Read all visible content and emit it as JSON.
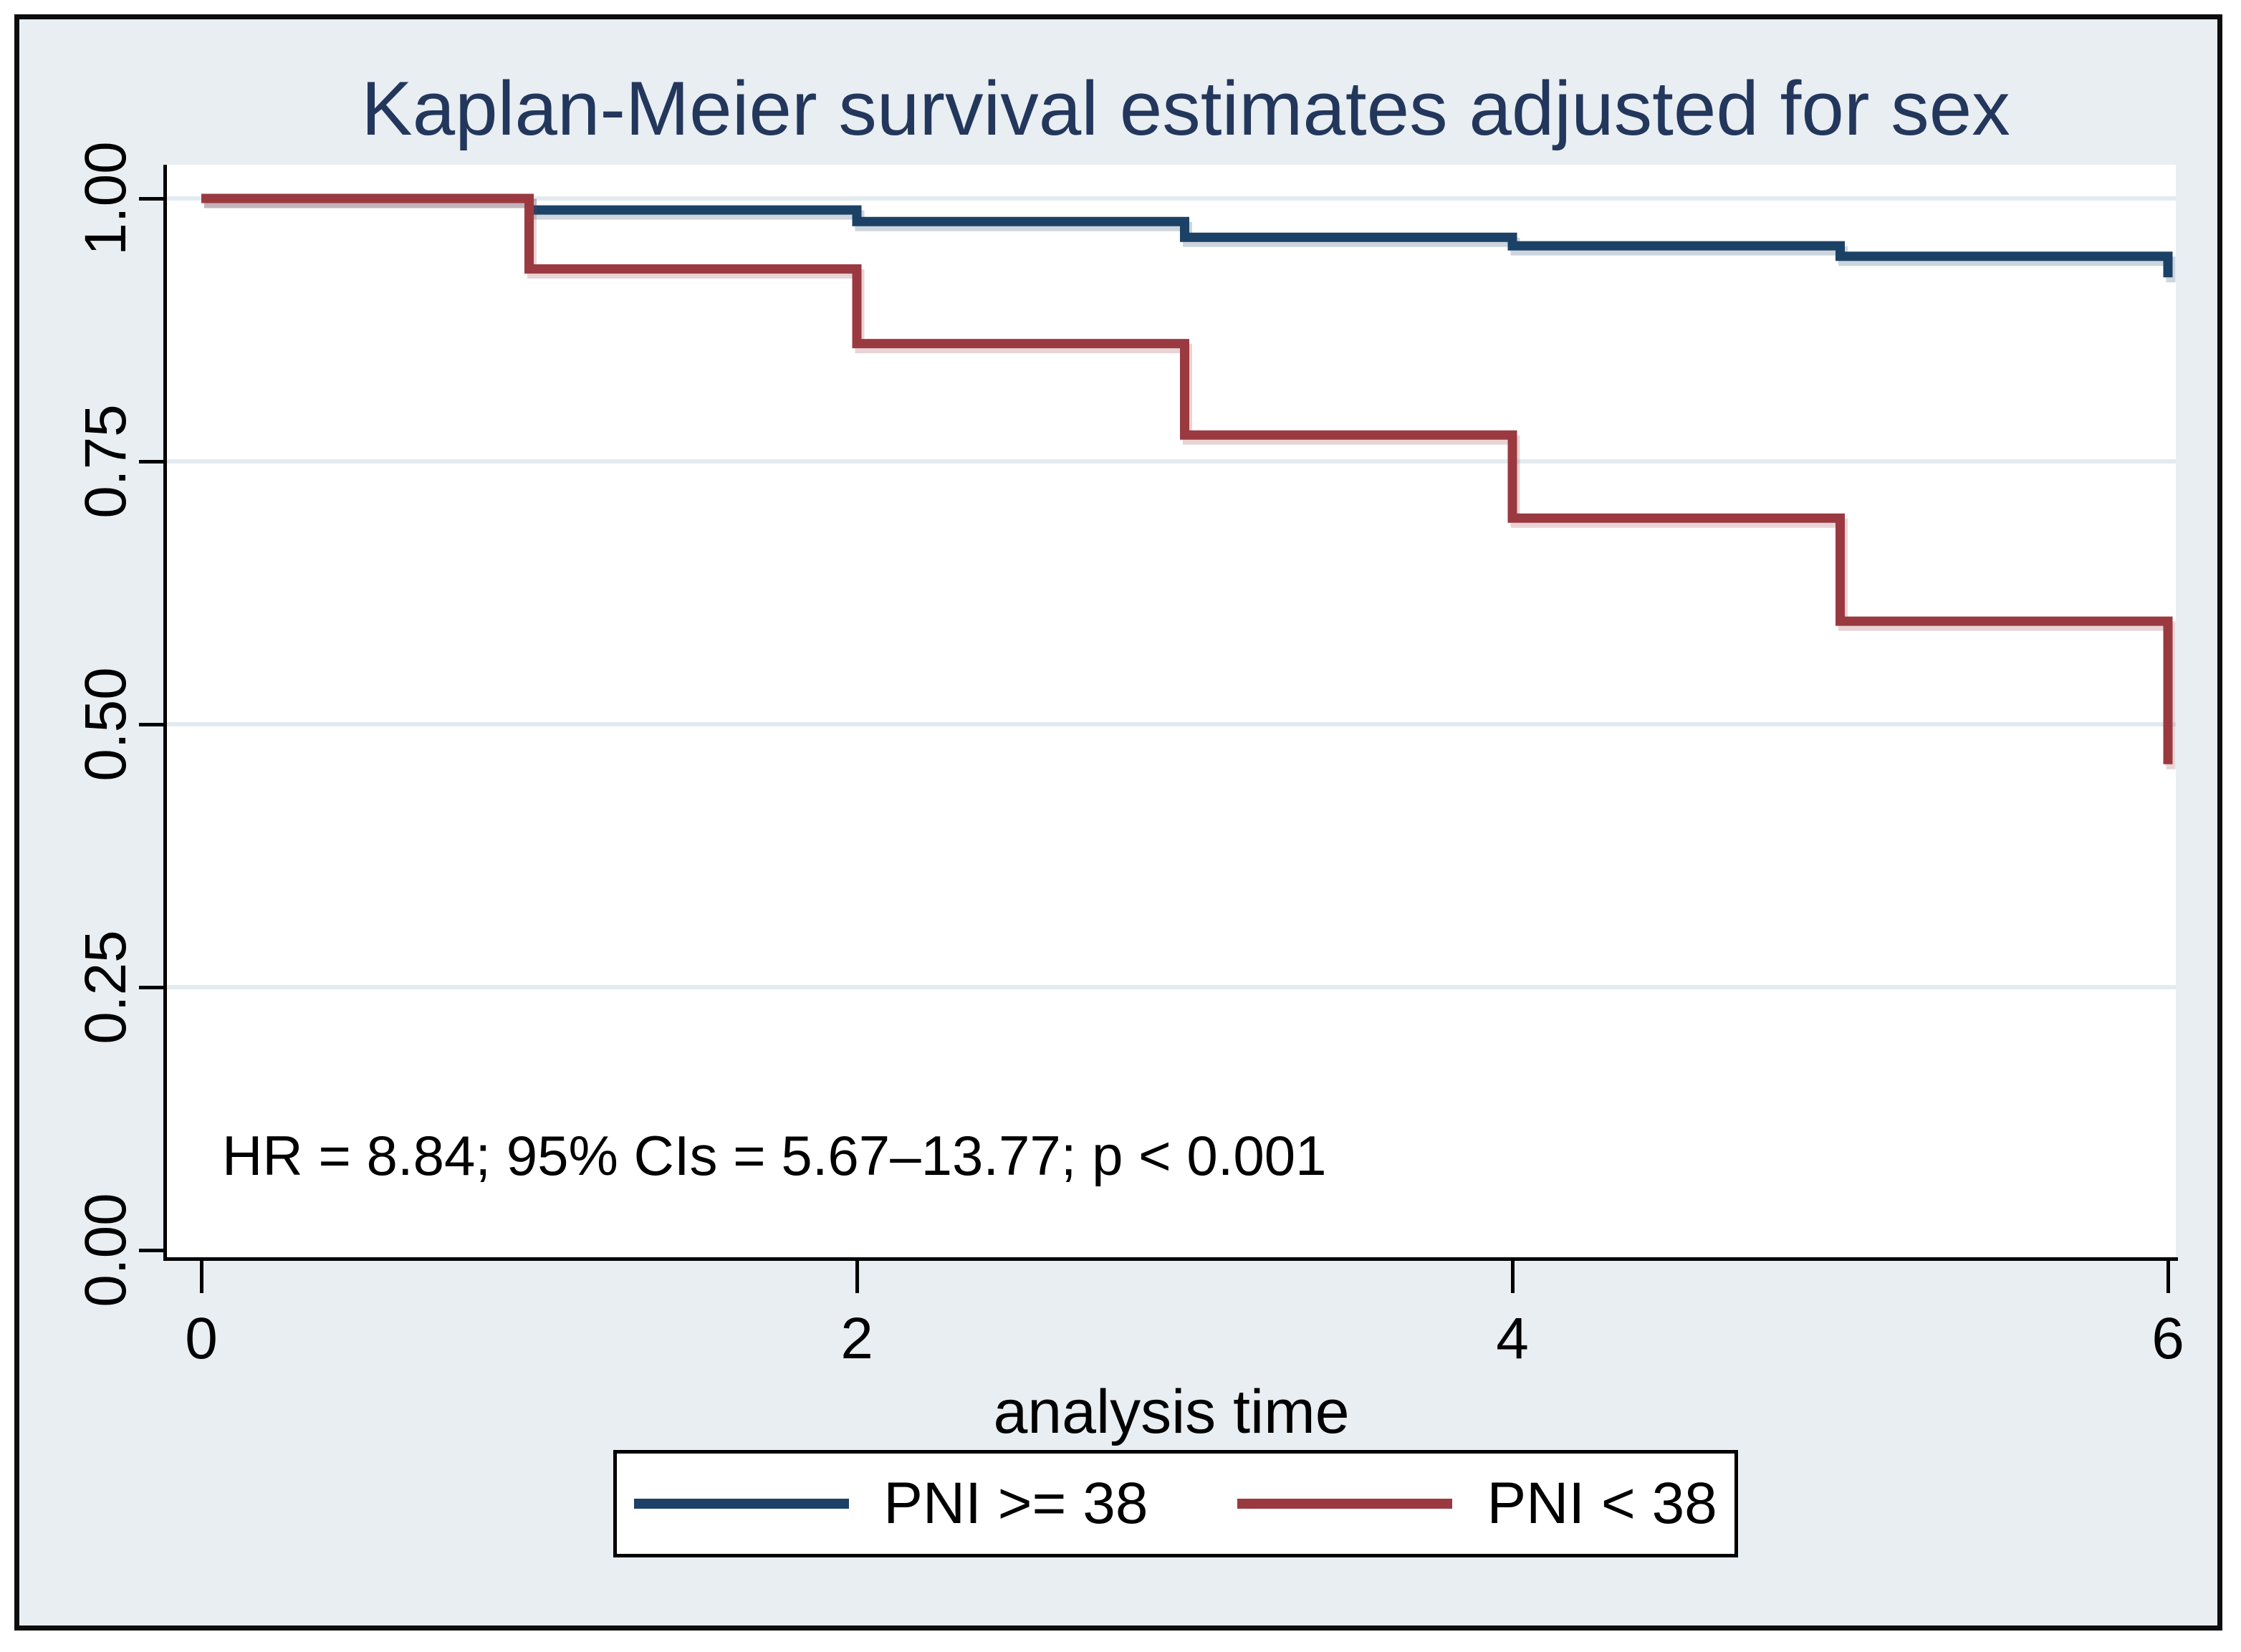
{
  "chart_data": {
    "type": "line",
    "subtype": "kaplan-meier-step",
    "title": "Kaplan-Meier survival estimates adjusted for sex",
    "xlabel": "analysis time",
    "ylabel": "",
    "xlim": [
      0,
      6
    ],
    "ylim": [
      0.0,
      1.0
    ],
    "grid": "horizontal",
    "x_ticks": [
      {
        "label": "0",
        "value": 0
      },
      {
        "label": "2",
        "value": 2
      },
      {
        "label": "4",
        "value": 4
      },
      {
        "label": "6",
        "value": 6
      }
    ],
    "y_ticks": [
      {
        "label": "1.00",
        "value": 1.0
      },
      {
        "label": "0.75",
        "value": 0.75
      },
      {
        "label": "0.50",
        "value": 0.5
      },
      {
        "label": "0.25",
        "value": 0.25
      },
      {
        "label": "0.00",
        "value": 0.0
      }
    ],
    "series": [
      {
        "name": "PNI >= 38",
        "color": "#1b4166",
        "steps": [
          [
            0,
            1.0
          ],
          [
            1,
            0.989
          ],
          [
            2,
            0.978
          ],
          [
            3,
            0.963
          ],
          [
            4,
            0.955
          ],
          [
            5,
            0.945
          ],
          [
            6,
            0.925
          ]
        ]
      },
      {
        "name": "PNI < 38",
        "color": "#9b3940",
        "steps": [
          [
            0,
            1.0
          ],
          [
            1,
            0.933
          ],
          [
            2,
            0.862
          ],
          [
            3,
            0.775
          ],
          [
            4,
            0.696
          ],
          [
            5,
            0.598
          ],
          [
            6,
            0.462
          ]
        ]
      }
    ],
    "legend": {
      "position": "bottom-center",
      "items": [
        "PNI >= 38",
        "PNI < 38"
      ]
    },
    "annotation": "HR = 8.84; 95% CIs = 5.67–13.77; p < 0.001"
  },
  "colors": {
    "figure_background": "#e8eef2",
    "plot_background": "#ffffff",
    "gridline": "#e3ebf1",
    "axis": "#000000",
    "title_text": "#23375c",
    "series_blue": "#1b4166",
    "series_red": "#9b3940"
  }
}
